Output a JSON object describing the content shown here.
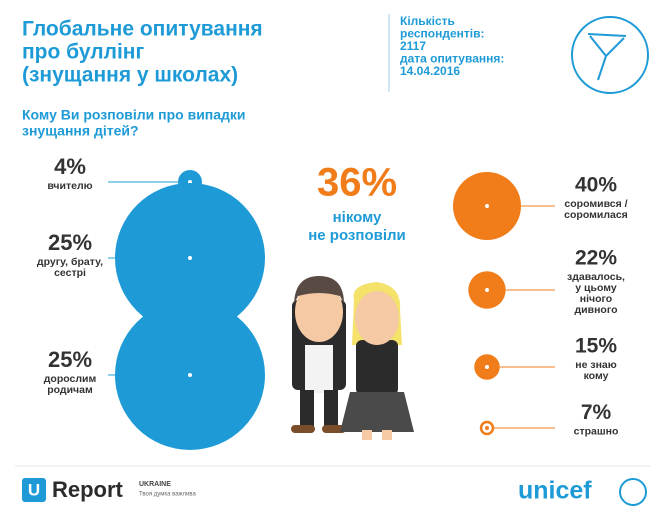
{
  "header": {
    "title_lines": [
      "Глобальне опитування",
      "про буллінг",
      "(знущання у школах)"
    ],
    "info_lines": [
      "Кількість",
      "респондентів:",
      "2117",
      "дата опитування:",
      "14.04.2016"
    ]
  },
  "question_lines": [
    "Кому Ви розповіли про випадки",
    "знущання дітей?"
  ],
  "left": [
    {
      "value": 4,
      "value_label": "4%",
      "label_lines": [
        "вчителю"
      ]
    },
    {
      "value": 25,
      "value_label": "25%",
      "label_lines": [
        "другу, брату,",
        "сестрі"
      ]
    },
    {
      "value": 25,
      "value_label": "25%",
      "label_lines": [
        "дорослим",
        "родичам"
      ]
    }
  ],
  "center": {
    "value": 36,
    "value_label": "36%",
    "label_lines": [
      "нікому",
      "не розповіли"
    ]
  },
  "right": [
    {
      "value": 40,
      "value_label": "40%",
      "label_lines": [
        "соромився /",
        "соромилася"
      ]
    },
    {
      "value": 22,
      "value_label": "22%",
      "label_lines": [
        "здавалось,",
        "у цьому",
        "нічого",
        "дивного"
      ]
    },
    {
      "value": 15,
      "value_label": "15%",
      "label_lines": [
        "не знаю",
        "кому"
      ]
    },
    {
      "value": 7,
      "value_label": "7%",
      "label_lines": [
        "страшно"
      ]
    }
  ],
  "footer": {
    "ureport_icon": "U",
    "ureport": "Report",
    "ureport_sub_lines": [
      "UKRAINE",
      "Твоя думка важлива"
    ],
    "unicef": "unicef"
  }
}
